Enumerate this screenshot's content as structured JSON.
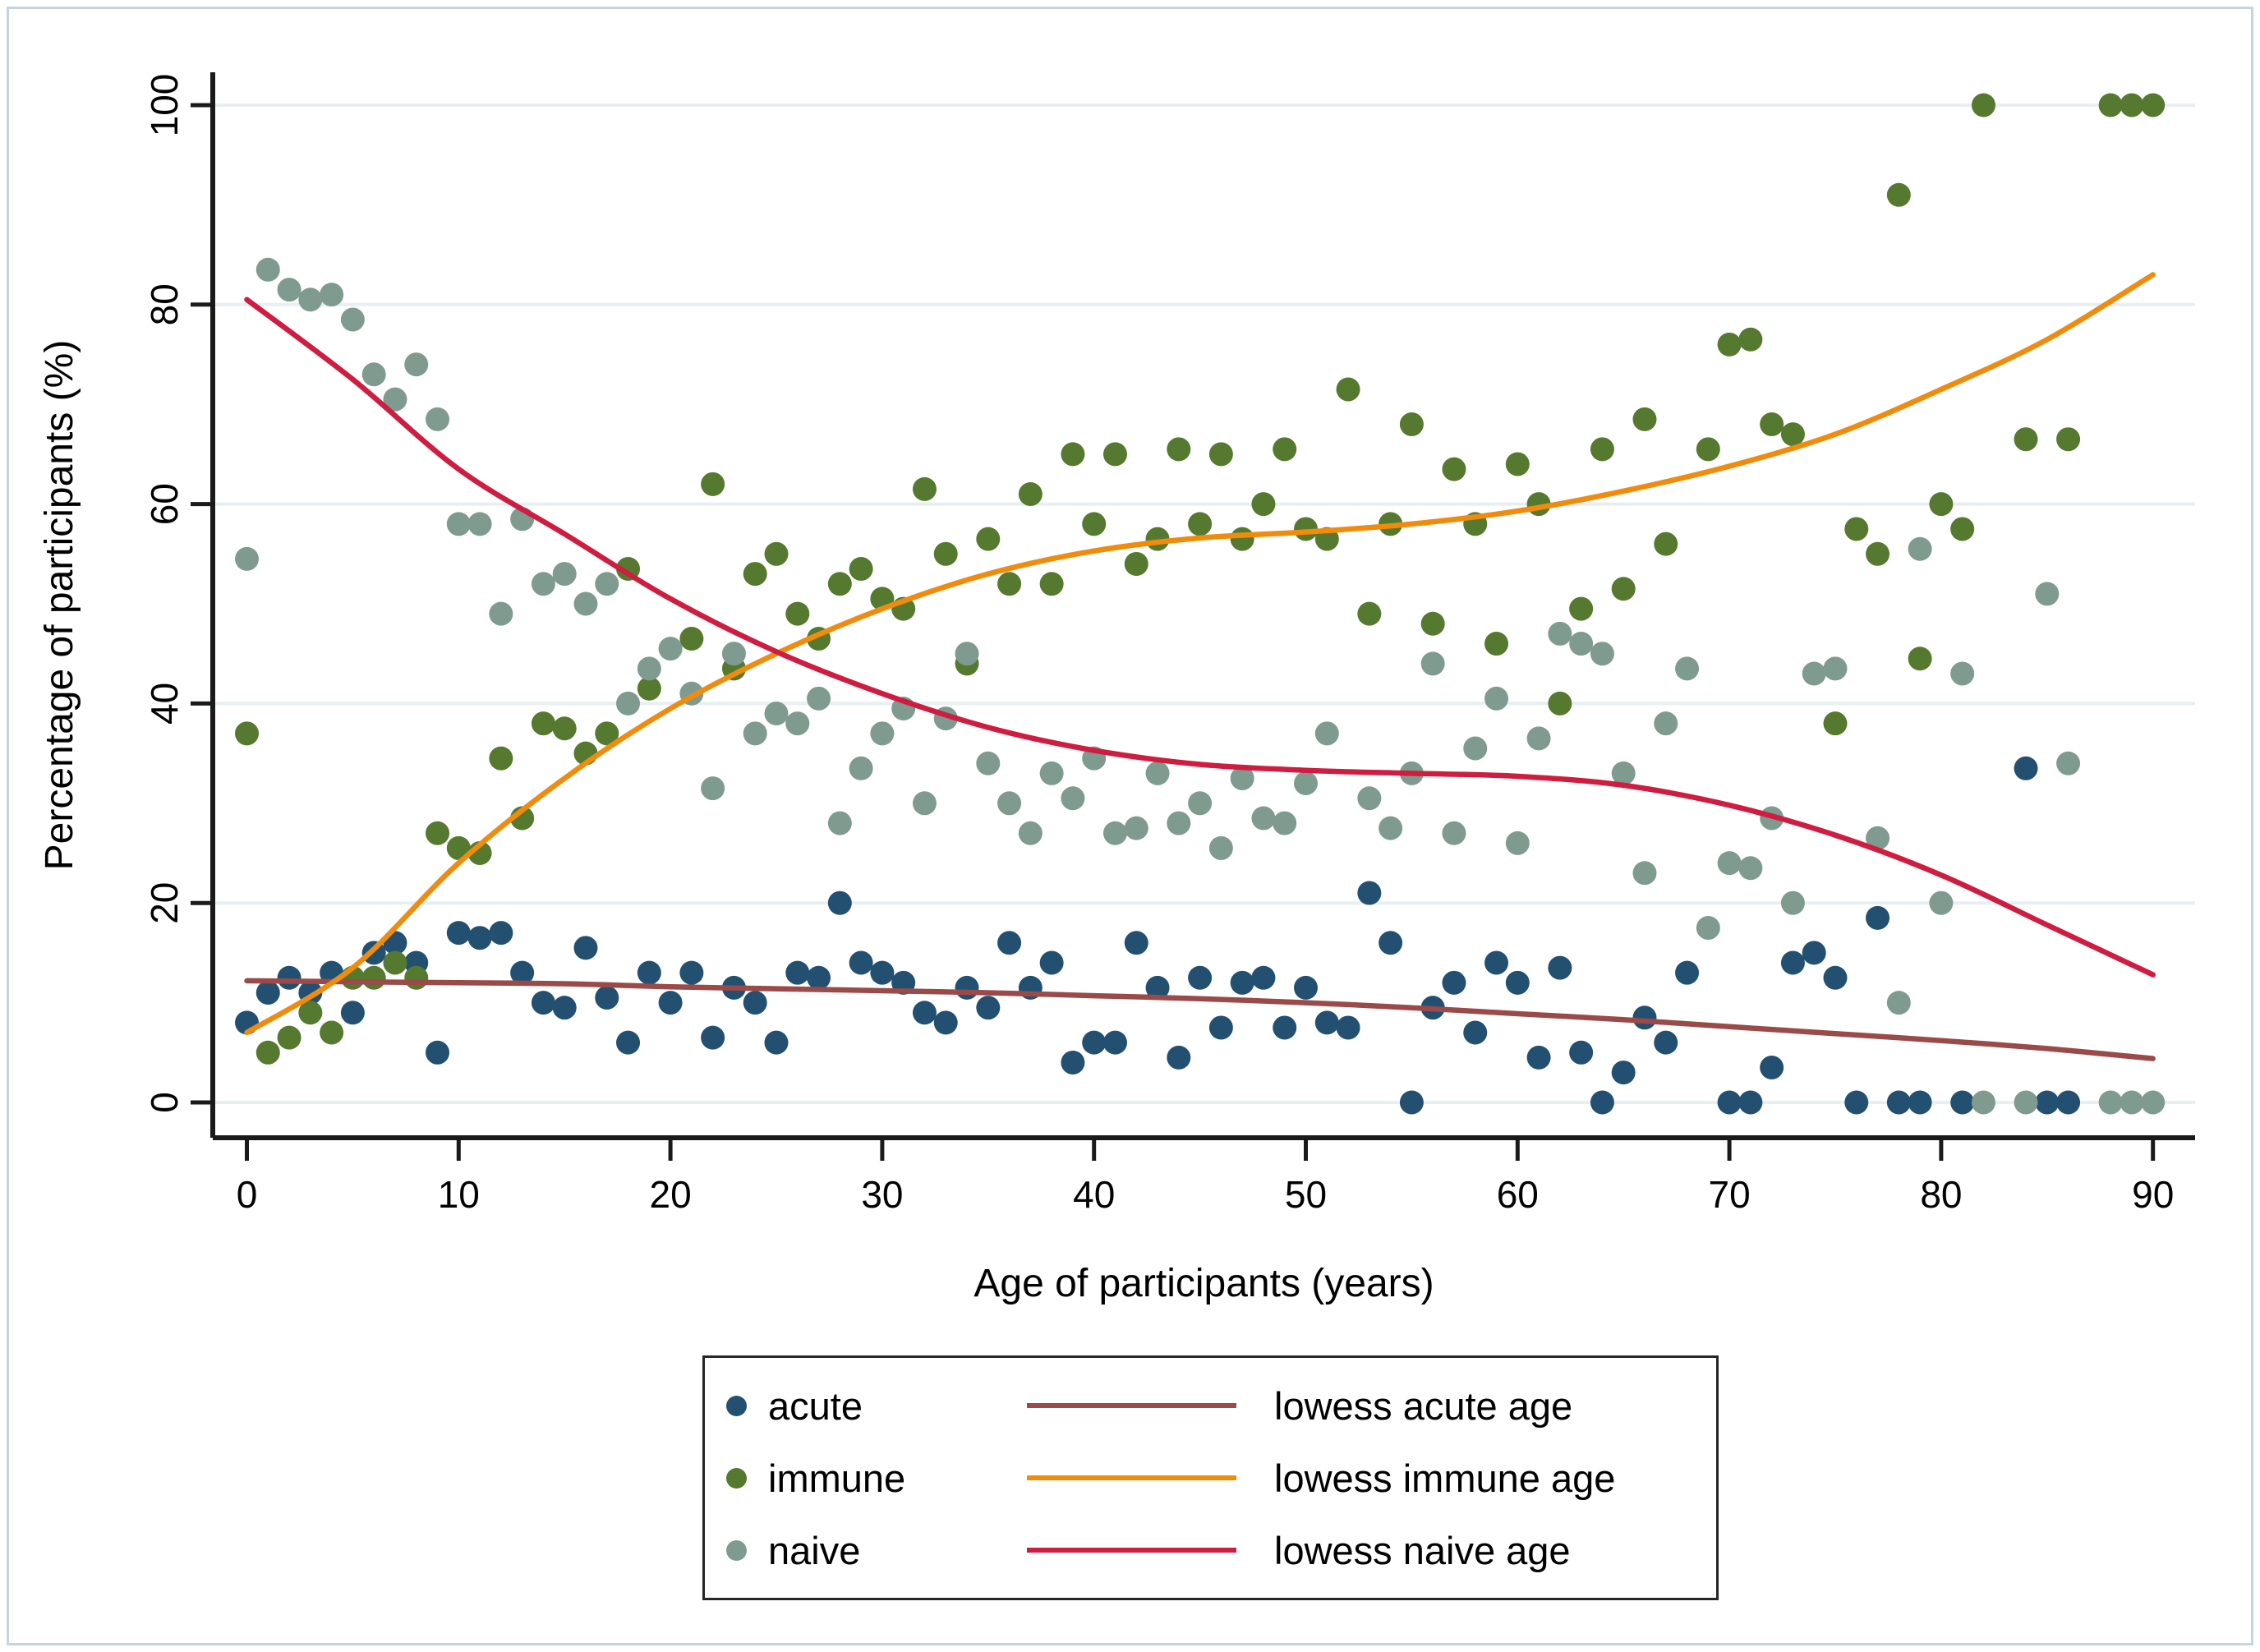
{
  "chart_data": {
    "type": "scatter",
    "title": "",
    "xlabel": "Age of participants (years)",
    "ylabel": "Percentage of participants (%)",
    "xlim": [
      0,
      90
    ],
    "ylim": [
      0,
      100
    ],
    "x_ticks": [
      0,
      10,
      20,
      30,
      40,
      50,
      60,
      70,
      80,
      90
    ],
    "y_ticks": [
      0,
      20,
      40,
      60,
      80,
      100
    ],
    "grid": "horizontal-only",
    "grid_color": "#e7eff3",
    "axis_color": "#1a1a1a",
    "background_color": "#ffffff",
    "legend_position": "bottom-center",
    "series": [
      {
        "name": "acute",
        "kind": "scatter",
        "color": "#235070",
        "points": [
          [
            0,
            8
          ],
          [
            1,
            11
          ],
          [
            2,
            12.5
          ],
          [
            3,
            11
          ],
          [
            4,
            13
          ],
          [
            5,
            9
          ],
          [
            6,
            15
          ],
          [
            7,
            16
          ],
          [
            8,
            14
          ],
          [
            9,
            5
          ],
          [
            10,
            17
          ],
          [
            11,
            16.5
          ],
          [
            12,
            17
          ],
          [
            13,
            13
          ],
          [
            14,
            10
          ],
          [
            15,
            9.5
          ],
          [
            16,
            15.5
          ],
          [
            17,
            10.5
          ],
          [
            18,
            6
          ],
          [
            19,
            13
          ],
          [
            20,
            10
          ],
          [
            21,
            13
          ],
          [
            22,
            6.5
          ],
          [
            23,
            11.5
          ],
          [
            24,
            10
          ],
          [
            25,
            6
          ],
          [
            26,
            13
          ],
          [
            27,
            12.5
          ],
          [
            28,
            20
          ],
          [
            29,
            14
          ],
          [
            30,
            13
          ],
          [
            31,
            12
          ],
          [
            32,
            9
          ],
          [
            33,
            8
          ],
          [
            34,
            11.5
          ],
          [
            35,
            9.5
          ],
          [
            36,
            16
          ],
          [
            37,
            11.5
          ],
          [
            38,
            14
          ],
          [
            39,
            4
          ],
          [
            40,
            6
          ],
          [
            41,
            6
          ],
          [
            42,
            16
          ],
          [
            43,
            11.5
          ],
          [
            44,
            4.5
          ],
          [
            45,
            12.5
          ],
          [
            46,
            7.5
          ],
          [
            47,
            12
          ],
          [
            48,
            12.5
          ],
          [
            49,
            7.5
          ],
          [
            50,
            11.5
          ],
          [
            51,
            8
          ],
          [
            52,
            7.5
          ],
          [
            53,
            21
          ],
          [
            54,
            16
          ],
          [
            55,
            0
          ],
          [
            56,
            9.5
          ],
          [
            57,
            12
          ],
          [
            58,
            7
          ],
          [
            59,
            14
          ],
          [
            60,
            12
          ],
          [
            61,
            4.5
          ],
          [
            62,
            13.5
          ],
          [
            63,
            5
          ],
          [
            64,
            0
          ],
          [
            65,
            3
          ],
          [
            66,
            8.5
          ],
          [
            67,
            6
          ],
          [
            68,
            13
          ],
          [
            70,
            0
          ],
          [
            71,
            0
          ],
          [
            72,
            3.5
          ],
          [
            73,
            14
          ],
          [
            74,
            15
          ],
          [
            75,
            12.5
          ],
          [
            76,
            0
          ],
          [
            77,
            18.5
          ],
          [
            78,
            0
          ],
          [
            79,
            0
          ],
          [
            81,
            0
          ],
          [
            84,
            33.5
          ],
          [
            85,
            0
          ],
          [
            86,
            0
          ]
        ]
      },
      {
        "name": "immune",
        "kind": "scatter",
        "color": "#55792e",
        "points": [
          [
            0,
            37
          ],
          [
            1,
            5
          ],
          [
            2,
            6.5
          ],
          [
            3,
            9
          ],
          [
            4,
            7
          ],
          [
            5,
            12.5
          ],
          [
            6,
            12.5
          ],
          [
            7,
            14
          ],
          [
            8,
            12.5
          ],
          [
            9,
            27
          ],
          [
            10,
            25.5
          ],
          [
            11,
            25
          ],
          [
            12,
            34.5
          ],
          [
            13,
            28.5
          ],
          [
            14,
            38
          ],
          [
            15,
            37.5
          ],
          [
            16,
            35
          ],
          [
            17,
            37
          ],
          [
            18,
            53.5
          ],
          [
            19,
            41.5
          ],
          [
            21,
            46.5
          ],
          [
            22,
            62
          ],
          [
            23,
            43.5
          ],
          [
            24,
            53
          ],
          [
            25,
            55
          ],
          [
            26,
            49
          ],
          [
            27,
            46.5
          ],
          [
            28,
            52
          ],
          [
            29,
            53.5
          ],
          [
            30,
            50.5
          ],
          [
            31,
            49.5
          ],
          [
            32,
            61.5
          ],
          [
            33,
            55
          ],
          [
            34,
            44
          ],
          [
            35,
            56.5
          ],
          [
            36,
            52
          ],
          [
            37,
            61
          ],
          [
            38,
            52
          ],
          [
            39,
            65
          ],
          [
            40,
            58
          ],
          [
            41,
            65
          ],
          [
            42,
            54
          ],
          [
            43,
            56.5
          ],
          [
            44,
            65.5
          ],
          [
            45,
            58
          ],
          [
            46,
            65
          ],
          [
            47,
            56.5
          ],
          [
            48,
            60
          ],
          [
            49,
            65.5
          ],
          [
            50,
            57.5
          ],
          [
            51,
            56.5
          ],
          [
            52,
            71.5
          ],
          [
            53,
            49
          ],
          [
            54,
            58
          ],
          [
            55,
            68
          ],
          [
            56,
            48
          ],
          [
            57,
            63.5
          ],
          [
            58,
            58
          ],
          [
            59,
            46
          ],
          [
            60,
            64
          ],
          [
            61,
            60
          ],
          [
            62,
            40
          ],
          [
            63,
            49.5
          ],
          [
            64,
            65.5
          ],
          [
            65,
            51.5
          ],
          [
            66,
            68.5
          ],
          [
            67,
            56
          ],
          [
            69,
            65.5
          ],
          [
            70,
            76
          ],
          [
            71,
            76.5
          ],
          [
            72,
            68
          ],
          [
            73,
            67
          ],
          [
            75,
            38
          ],
          [
            76,
            57.5
          ],
          [
            77,
            55
          ],
          [
            78,
            91
          ],
          [
            79,
            44.5
          ],
          [
            80,
            60
          ],
          [
            81,
            57.5
          ],
          [
            82,
            100
          ],
          [
            84,
            66.5
          ],
          [
            86,
            66.5
          ],
          [
            88,
            100
          ],
          [
            89,
            100
          ],
          [
            90,
            100
          ]
        ]
      },
      {
        "name": "naive",
        "kind": "scatter",
        "color": "#7f9b8f",
        "points": [
          [
            0,
            54.5
          ],
          [
            1,
            83.5
          ],
          [
            2,
            81.5
          ],
          [
            3,
            80.5
          ],
          [
            4,
            81
          ],
          [
            5,
            78.5
          ],
          [
            6,
            73
          ],
          [
            7,
            70.5
          ],
          [
            8,
            74
          ],
          [
            9,
            68.5
          ],
          [
            10,
            58
          ],
          [
            11,
            58
          ],
          [
            12,
            49
          ],
          [
            13,
            58.5
          ],
          [
            14,
            52
          ],
          [
            15,
            53
          ],
          [
            16,
            50
          ],
          [
            17,
            52
          ],
          [
            18,
            40
          ],
          [
            19,
            43.5
          ],
          [
            20,
            45.5
          ],
          [
            21,
            41
          ],
          [
            22,
            31.5
          ],
          [
            23,
            45
          ],
          [
            24,
            37
          ],
          [
            25,
            39
          ],
          [
            26,
            38
          ],
          [
            27,
            40.5
          ],
          [
            28,
            28
          ],
          [
            29,
            33.5
          ],
          [
            30,
            37
          ],
          [
            31,
            39.5
          ],
          [
            32,
            30
          ],
          [
            33,
            38.5
          ],
          [
            34,
            45
          ],
          [
            35,
            34
          ],
          [
            36,
            30
          ],
          [
            37,
            27
          ],
          [
            38,
            33
          ],
          [
            39,
            30.5
          ],
          [
            40,
            34.5
          ],
          [
            41,
            27
          ],
          [
            42,
            27.5
          ],
          [
            43,
            33
          ],
          [
            44,
            28
          ],
          [
            45,
            30
          ],
          [
            46,
            25.5
          ],
          [
            47,
            32.5
          ],
          [
            48,
            28.5
          ],
          [
            49,
            28
          ],
          [
            50,
            32
          ],
          [
            51,
            37
          ],
          [
            53,
            30.5
          ],
          [
            54,
            27.5
          ],
          [
            55,
            33
          ],
          [
            56,
            44
          ],
          [
            57,
            27
          ],
          [
            58,
            35.5
          ],
          [
            59,
            40.5
          ],
          [
            60,
            26
          ],
          [
            61,
            36.5
          ],
          [
            62,
            47
          ],
          [
            63,
            46
          ],
          [
            64,
            45
          ],
          [
            65,
            33
          ],
          [
            66,
            23
          ],
          [
            67,
            38
          ],
          [
            68,
            43.5
          ],
          [
            69,
            17.5
          ],
          [
            70,
            24
          ],
          [
            71,
            23.5
          ],
          [
            72,
            28.5
          ],
          [
            73,
            20
          ],
          [
            74,
            43
          ],
          [
            75,
            43.5
          ],
          [
            77,
            26.5
          ],
          [
            78,
            10
          ],
          [
            79,
            55.5
          ],
          [
            80,
            20
          ],
          [
            81,
            43
          ],
          [
            82,
            0
          ],
          [
            84,
            0
          ],
          [
            85,
            51
          ],
          [
            86,
            34
          ],
          [
            88,
            0
          ],
          [
            89,
            0
          ],
          [
            90,
            0
          ]
        ]
      },
      {
        "name": "lowess acute age",
        "kind": "line",
        "color": "#9a4a48",
        "points": [
          [
            0,
            12.2
          ],
          [
            5,
            12.1
          ],
          [
            10,
            12
          ],
          [
            15,
            11.9
          ],
          [
            20,
            11.6
          ],
          [
            25,
            11.4
          ],
          [
            30,
            11.2
          ],
          [
            35,
            11
          ],
          [
            40,
            10.7
          ],
          [
            45,
            10.4
          ],
          [
            50,
            10
          ],
          [
            55,
            9.5
          ],
          [
            60,
            8.9
          ],
          [
            65,
            8.3
          ],
          [
            70,
            7.6
          ],
          [
            75,
            6.9
          ],
          [
            80,
            6.2
          ],
          [
            85,
            5.4
          ],
          [
            90,
            4.4
          ]
        ]
      },
      {
        "name": "lowess immune age",
        "kind": "line",
        "color": "#ef8c0d",
        "points": [
          [
            0,
            7
          ],
          [
            5,
            13.5
          ],
          [
            10,
            24
          ],
          [
            15,
            32.5
          ],
          [
            20,
            39.5
          ],
          [
            25,
            45
          ],
          [
            30,
            49.5
          ],
          [
            35,
            53
          ],
          [
            40,
            55.3
          ],
          [
            45,
            56.6
          ],
          [
            50,
            57.2
          ],
          [
            55,
            58
          ],
          [
            60,
            59.3
          ],
          [
            65,
            61.3
          ],
          [
            70,
            63.8
          ],
          [
            75,
            67
          ],
          [
            80,
            71.5
          ],
          [
            85,
            76.5
          ],
          [
            90,
            83
          ]
        ]
      },
      {
        "name": "lowess naive age",
        "kind": "line",
        "color": "#cf1d41",
        "points": [
          [
            0,
            80.5
          ],
          [
            5,
            72.5
          ],
          [
            10,
            63.5
          ],
          [
            15,
            57
          ],
          [
            20,
            50.5
          ],
          [
            25,
            45.2
          ],
          [
            30,
            41
          ],
          [
            35,
            37.6
          ],
          [
            40,
            35.3
          ],
          [
            45,
            33.9
          ],
          [
            50,
            33.3
          ],
          [
            55,
            33
          ],
          [
            60,
            32.7
          ],
          [
            65,
            31.8
          ],
          [
            70,
            29.8
          ],
          [
            75,
            26.8
          ],
          [
            80,
            22.8
          ],
          [
            85,
            17.8
          ],
          [
            90,
            12.8
          ]
        ]
      }
    ],
    "legend": {
      "entries": [
        {
          "marker_label": "acute",
          "marker_color": "#235070",
          "line_label": "lowess acute age",
          "line_color": "#9a4a48"
        },
        {
          "marker_label": "immune",
          "marker_color": "#55792e",
          "line_label": "lowess immune age",
          "line_color": "#ef8c0d"
        },
        {
          "marker_label": "naive",
          "marker_color": "#7f9b8f",
          "line_label": "lowess naive age",
          "line_color": "#cf1d41"
        }
      ]
    }
  }
}
